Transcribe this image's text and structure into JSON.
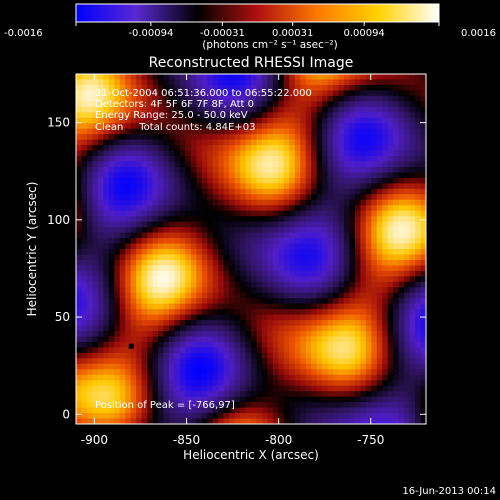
{
  "chart_data": {
    "type": "heatmap",
    "title": "Reconstructed RHESSI Image",
    "xlabel": "Heliocentric X (arcsec)",
    "ylabel": "Heliocentric Y (arcsec)",
    "xlim": [
      -910,
      -720
    ],
    "ylim": [
      -5,
      175
    ],
    "x_ticks": [
      "-900",
      "-850",
      "-800",
      "-750"
    ],
    "x_tick_values": [
      -900,
      -850,
      -800,
      -750
    ],
    "y_ticks": [
      "0",
      "50",
      "100",
      "150"
    ],
    "y_tick_values": [
      0,
      50,
      100,
      150
    ],
    "colorbar": {
      "range": [
        -0.0016,
        0.0016
      ],
      "ticks": [
        "-0.0016",
        "-0.00094",
        "-0.00031",
        "0.00031",
        "0.00094",
        "0.0016"
      ],
      "tick_values": [
        -0.0016,
        -0.00094,
        -0.00031,
        0.00031,
        0.00094,
        0.0016
      ],
      "units": "(photons cm⁻² s⁻¹ asec⁻²)",
      "colormap": [
        "#0000ff",
        "#5a28d2",
        "#000000",
        "#b01010",
        "#ff7a00",
        "#ffd200",
        "#ffffff"
      ]
    },
    "annotations": [
      "21-Oct-2004 06:51:36.000 to 06:55:22.000",
      "Detectors: 4F 5F 6F 7F 8F, Att 0",
      "Energy Range: 25.0 - 50.0 keV",
      "Clean     Total counts: 4.84E+03"
    ],
    "peak_label": "Position of Peak = [-766,97]",
    "peak_position": [
      -766,
      97
    ],
    "min_marker": [
      -880,
      35
    ],
    "footer": "16-Jun-2013 00:14"
  }
}
